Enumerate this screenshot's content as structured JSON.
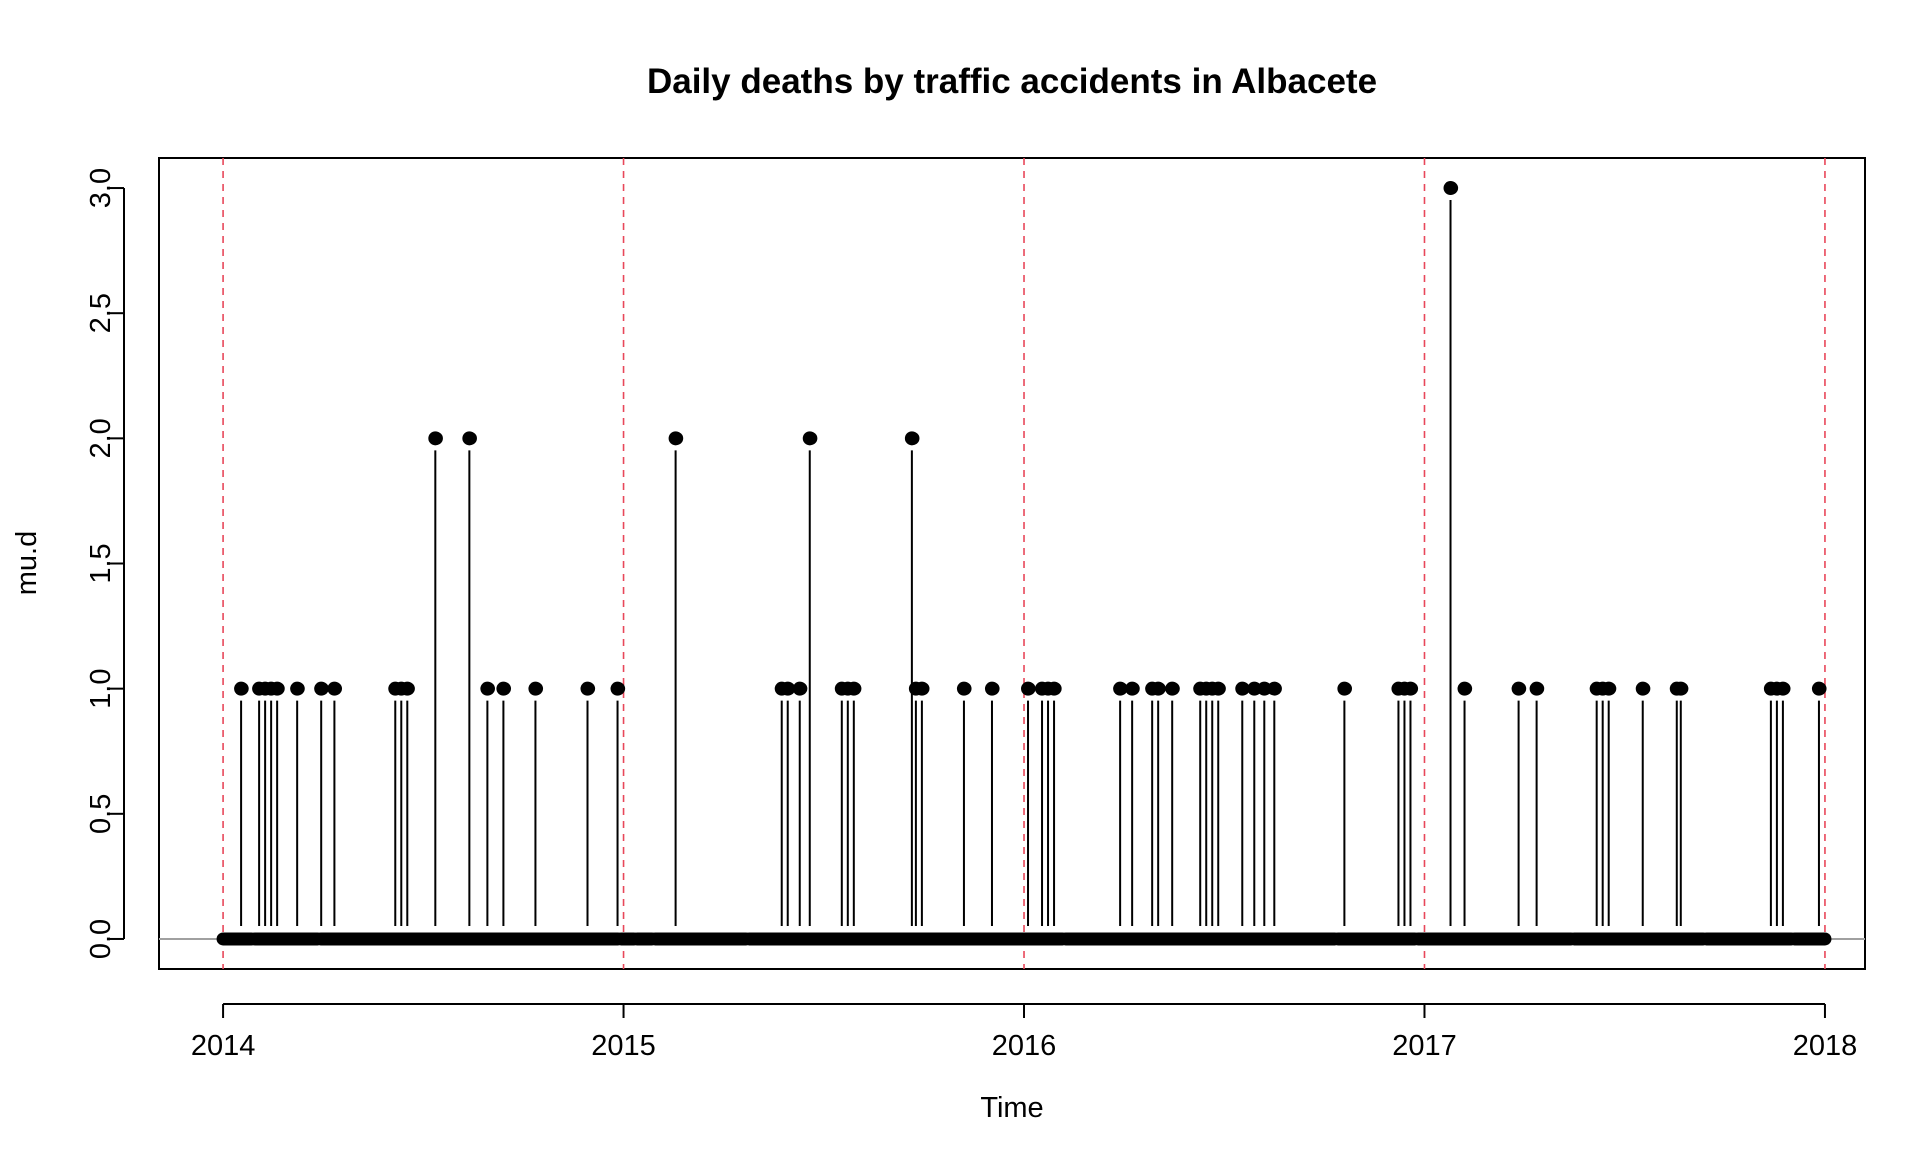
{
  "chart_data": {
    "type": "line",
    "title": "Daily deaths by traffic accidents in Albacete",
    "xlabel": "Time",
    "ylabel": "mu.d",
    "xlim": [
      2013.84,
      2018.1
    ],
    "ylim": [
      -0.12,
      3.12
    ],
    "x_ticks": [
      2014,
      2015,
      2016,
      2017,
      2018
    ],
    "x_tick_labels": [
      "2014",
      "2015",
      "2016",
      "2017",
      "2018"
    ],
    "y_ticks": [
      0,
      0.5,
      1,
      1.5,
      2,
      2.5,
      3
    ],
    "y_tick_labels": [
      "0.0",
      "0.5",
      "1.0",
      "1.5",
      "2.0",
      "2.5",
      "3.0"
    ],
    "reference_lines": {
      "vertical_dashed": [
        2014,
        2015,
        2016,
        2017,
        2018
      ],
      "vertical_color": "#e8475a",
      "horizontal": 0,
      "horizontal_color": "#a0a0a0"
    },
    "series_color": "#000000",
    "grid": false,
    "legend": "none",
    "spikes": [
      {
        "x": 2014.045,
        "y": 1
      },
      {
        "x": 2014.09,
        "y": 1
      },
      {
        "x": 2014.105,
        "y": 1
      },
      {
        "x": 2014.12,
        "y": 1
      },
      {
        "x": 2014.135,
        "y": 1
      },
      {
        "x": 2014.185,
        "y": 1
      },
      {
        "x": 2014.245,
        "y": 1
      },
      {
        "x": 2014.278,
        "y": 1
      },
      {
        "x": 2014.43,
        "y": 1
      },
      {
        "x": 2014.445,
        "y": 1
      },
      {
        "x": 2014.46,
        "y": 1
      },
      {
        "x": 2014.53,
        "y": 2
      },
      {
        "x": 2014.615,
        "y": 2
      },
      {
        "x": 2014.66,
        "y": 1
      },
      {
        "x": 2014.7,
        "y": 1
      },
      {
        "x": 2014.78,
        "y": 1
      },
      {
        "x": 2014.91,
        "y": 1
      },
      {
        "x": 2014.985,
        "y": 1
      },
      {
        "x": 2015.13,
        "y": 2
      },
      {
        "x": 2015.395,
        "y": 1
      },
      {
        "x": 2015.41,
        "y": 1
      },
      {
        "x": 2015.44,
        "y": 1
      },
      {
        "x": 2015.465,
        "y": 2
      },
      {
        "x": 2015.545,
        "y": 1
      },
      {
        "x": 2015.56,
        "y": 1
      },
      {
        "x": 2015.575,
        "y": 1
      },
      {
        "x": 2015.72,
        "y": 2
      },
      {
        "x": 2015.73,
        "y": 1
      },
      {
        "x": 2015.745,
        "y": 1
      },
      {
        "x": 2015.85,
        "y": 1
      },
      {
        "x": 2015.92,
        "y": 1
      },
      {
        "x": 2016.01,
        "y": 1
      },
      {
        "x": 2016.045,
        "y": 1
      },
      {
        "x": 2016.06,
        "y": 1
      },
      {
        "x": 2016.075,
        "y": 1
      },
      {
        "x": 2016.24,
        "y": 1
      },
      {
        "x": 2016.27,
        "y": 1
      },
      {
        "x": 2016.32,
        "y": 1
      },
      {
        "x": 2016.335,
        "y": 1
      },
      {
        "x": 2016.37,
        "y": 1
      },
      {
        "x": 2016.44,
        "y": 1
      },
      {
        "x": 2016.455,
        "y": 1
      },
      {
        "x": 2016.47,
        "y": 1
      },
      {
        "x": 2016.485,
        "y": 1
      },
      {
        "x": 2016.545,
        "y": 1
      },
      {
        "x": 2016.575,
        "y": 1
      },
      {
        "x": 2016.6,
        "y": 1
      },
      {
        "x": 2016.625,
        "y": 1
      },
      {
        "x": 2016.8,
        "y": 1
      },
      {
        "x": 2016.935,
        "y": 1
      },
      {
        "x": 2016.95,
        "y": 1
      },
      {
        "x": 2016.965,
        "y": 1
      },
      {
        "x": 2017.065,
        "y": 3
      },
      {
        "x": 2017.1,
        "y": 1
      },
      {
        "x": 2017.235,
        "y": 1
      },
      {
        "x": 2017.28,
        "y": 1
      },
      {
        "x": 2017.43,
        "y": 1
      },
      {
        "x": 2017.445,
        "y": 1
      },
      {
        "x": 2017.46,
        "y": 1
      },
      {
        "x": 2017.545,
        "y": 1
      },
      {
        "x": 2017.63,
        "y": 1
      },
      {
        "x": 2017.64,
        "y": 1
      },
      {
        "x": 2017.865,
        "y": 1
      },
      {
        "x": 2017.88,
        "y": 1
      },
      {
        "x": 2017.895,
        "y": 1
      },
      {
        "x": 2017.985,
        "y": 1
      }
    ],
    "zero_gaps": [
      [
        2014.005,
        2014.05
      ],
      [
        2014.065,
        2014.072
      ],
      [
        2014.235,
        2014.245
      ],
      [
        2014.99,
        2015.015
      ],
      [
        2015.035,
        2015.07
      ],
      [
        2016.07,
        2016.1
      ],
      [
        2016.8,
        2016.8
      ],
      [
        2016.97,
        2016.98
      ],
      [
        2017.0,
        2017.0
      ],
      [
        2017.37,
        2017.38
      ],
      [
        2017.63,
        2017.64
      ],
      [
        2017.69,
        2017.7
      ],
      [
        2017.92,
        2017.935
      ],
      [
        2017.985,
        2017.995
      ]
    ],
    "zero_breaks": [
      2014.075,
      2014.24,
      2014.99,
      2015.03,
      2015.075,
      2015.31,
      2016.1,
      2016.78,
      2016.98,
      2017.37,
      2017.7,
      2017.92
    ]
  }
}
